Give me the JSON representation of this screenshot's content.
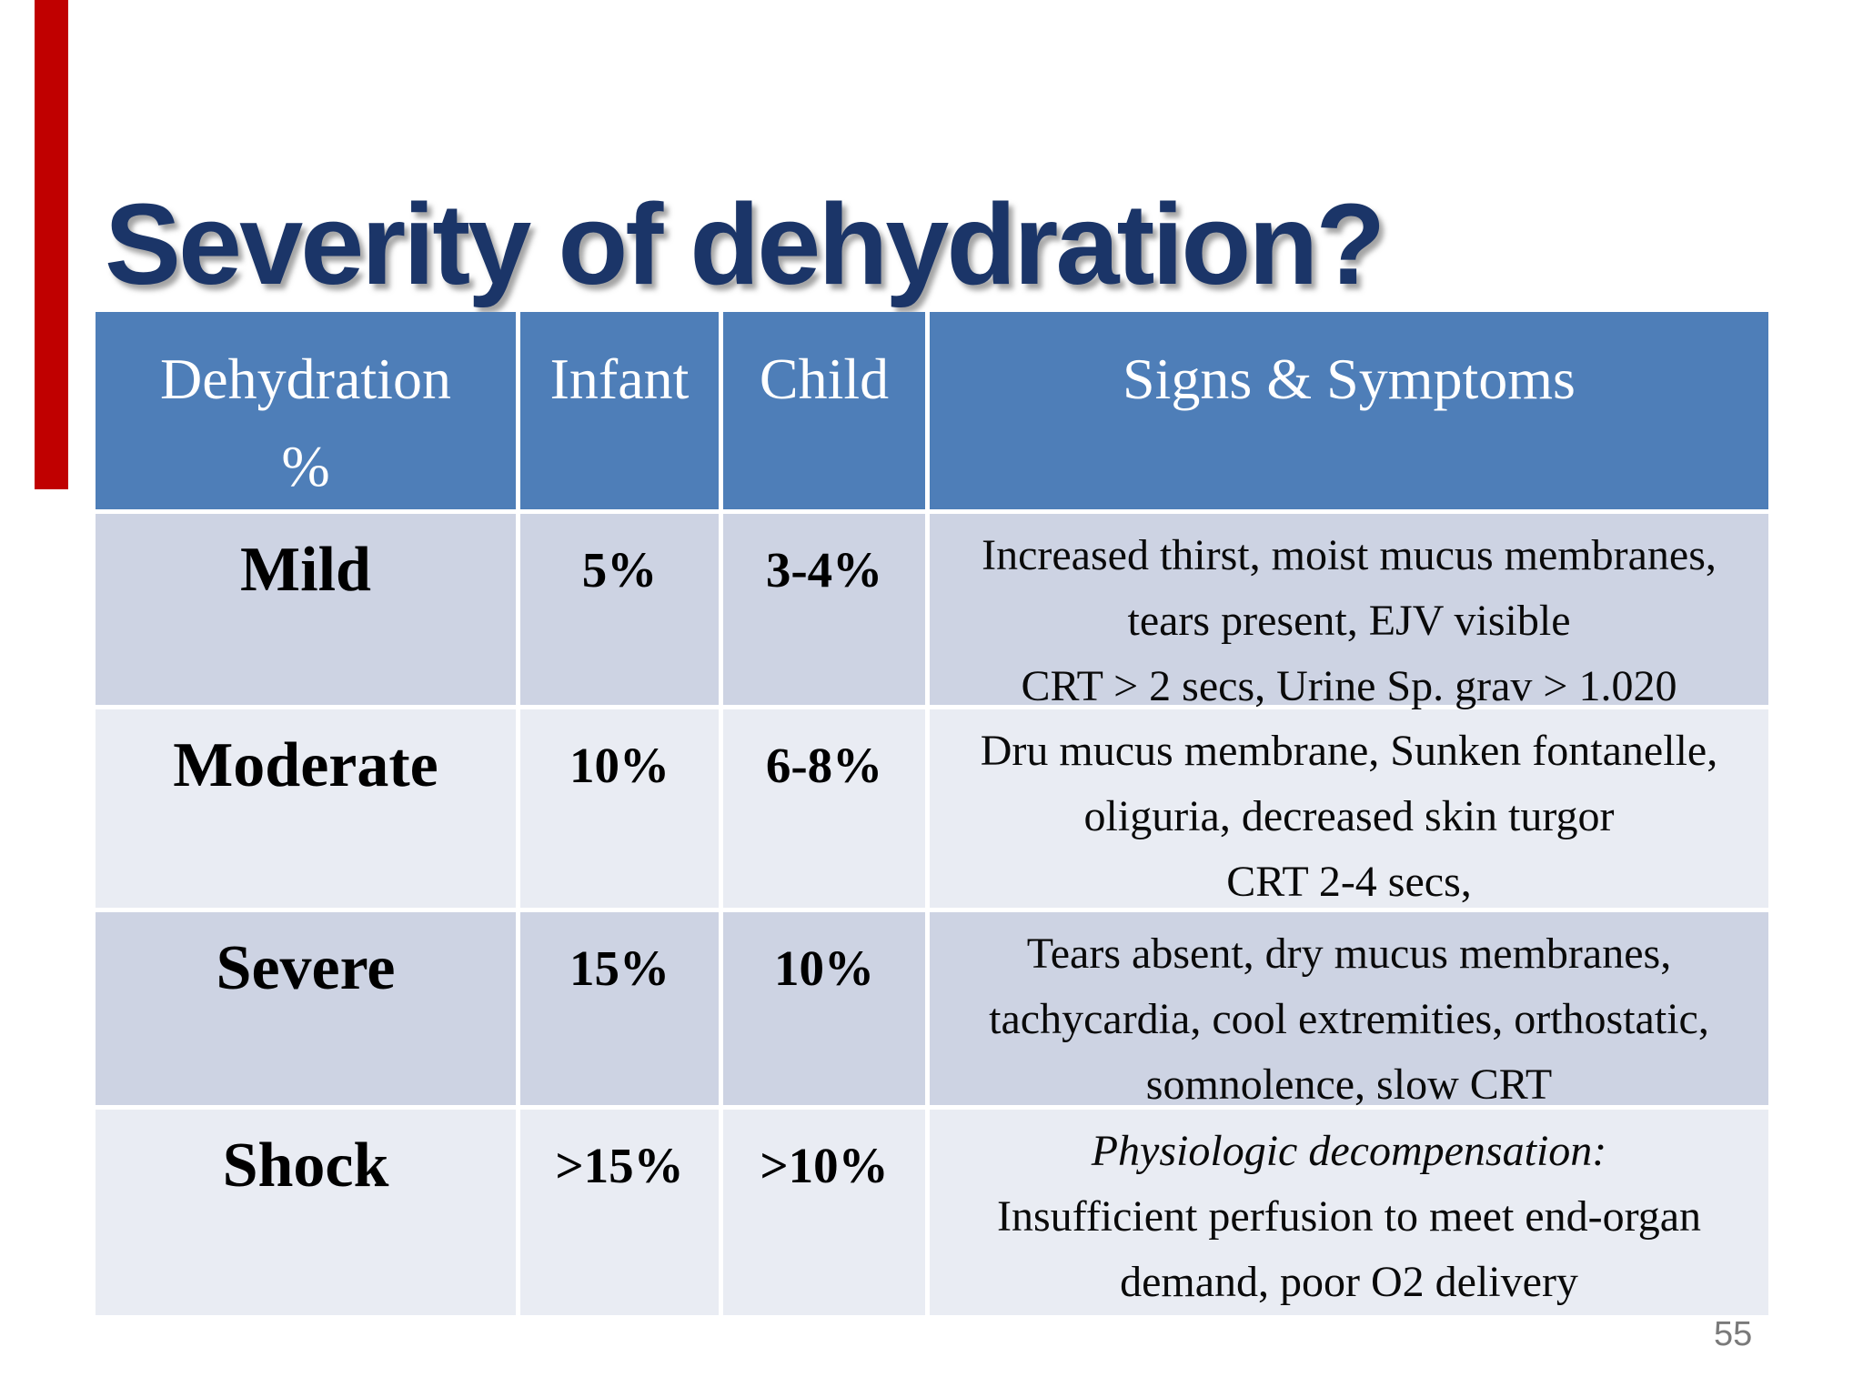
{
  "slide": {
    "title": "Severity of dehydration?",
    "page_number": "55",
    "accent_bar_color": "#c00000",
    "title_color": "#1b3568"
  },
  "table": {
    "header_bg": "#4e7eb8",
    "row_bg_dark": "#cdd3e3",
    "row_bg_light": "#e9ecf3",
    "columns": [
      "Dehydration %",
      "Infant",
      "Child",
      "Signs & Symptoms"
    ],
    "rows": [
      {
        "severity": "Mild",
        "infant": "5%",
        "child": "3-4%",
        "signs": [
          "Increased thirst, moist mucus membranes,",
          "tears present, EJV visible",
          "CRT > 2 secs, Urine Sp. grav > 1.020"
        ]
      },
      {
        "severity": "Moderate",
        "infant": "10%",
        "child": "6-8%",
        "signs": [
          "Dru mucus membrane, Sunken fontanelle,",
          "oliguria, decreased skin turgor",
          "CRT  2-4 secs,"
        ]
      },
      {
        "severity": "Severe",
        "infant": "15%",
        "child": "10%",
        "signs": [
          "Tears absent, dry mucus membranes,",
          "tachycardia, cool extremities, orthostatic,",
          "somnolence, slow CRT"
        ]
      },
      {
        "severity": "Shock",
        "infant": ">15%",
        "child": ">10%",
        "signs": [
          "Physiologic decompensation:",
          "Insufficient perfusion to meet end-organ",
          "demand, poor O2 delivery"
        ]
      }
    ]
  }
}
